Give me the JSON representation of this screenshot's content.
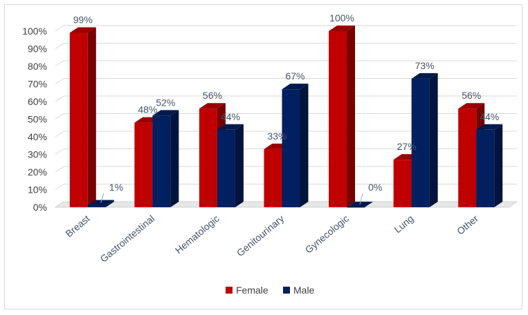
{
  "chart_data": {
    "type": "bar",
    "categories": [
      "Breast",
      "Gastrointestinal",
      "Hematologic",
      "Genitourinary",
      "Gynecologic",
      "Lung",
      "Other"
    ],
    "series": [
      {
        "name": "Female",
        "values": [
          99,
          48,
          56,
          33,
          100,
          27,
          56
        ],
        "labels": [
          "99%",
          "48%",
          "56%",
          "33%",
          "100%",
          "27%",
          "56%"
        ],
        "color": "#c00000"
      },
      {
        "name": "Male",
        "values": [
          1,
          52,
          44,
          67,
          0,
          73,
          44
        ],
        "labels": [
          "1%",
          "52%",
          "44%",
          "67%",
          "0%",
          "73%",
          "44%"
        ],
        "color": "#002060"
      }
    ],
    "title": "",
    "xlabel": "",
    "ylabel": "",
    "ylim": [
      0,
      100
    ],
    "yticks": [
      "0%",
      "10%",
      "20%",
      "30%",
      "40%",
      "50%",
      "60%",
      "70%",
      "80%",
      "90%",
      "100%"
    ],
    "grid": true,
    "legend": "bottom-center",
    "style": "3d-clustered-column"
  }
}
